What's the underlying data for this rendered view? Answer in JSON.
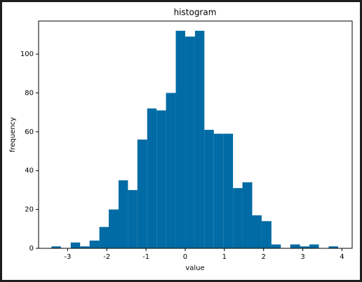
{
  "chart_data": {
    "type": "histogram",
    "title": "histogram",
    "x_label": "value",
    "y_label": "frequency",
    "bins": [
      -3.41,
      -3.17,
      -2.92,
      -2.68,
      -2.44,
      -2.19,
      -1.95,
      -1.7,
      -1.46,
      -1.22,
      -0.97,
      -0.73,
      -0.49,
      -0.24,
      0.0,
      0.25,
      0.49,
      0.73,
      0.98,
      1.22,
      1.46,
      1.71,
      1.95,
      2.2,
      2.44,
      2.68,
      2.93,
      3.17,
      3.41,
      3.66,
      3.9
    ],
    "values": [
      1,
      0,
      3,
      1,
      4,
      11,
      20,
      35,
      30,
      56,
      72,
      71,
      80,
      112,
      109,
      112,
      61,
      59,
      59,
      31,
      34,
      17,
      14,
      2,
      0,
      2,
      1,
      2,
      0,
      1
    ],
    "color": "#006ba4",
    "xlim": [
      -3.74,
      4.26
    ],
    "ylim": [
      0,
      117
    ],
    "xticks": [
      -3,
      -2,
      -1,
      0,
      1,
      2,
      3,
      4
    ],
    "yticks": [
      0,
      20,
      40,
      60,
      80,
      100
    ]
  }
}
